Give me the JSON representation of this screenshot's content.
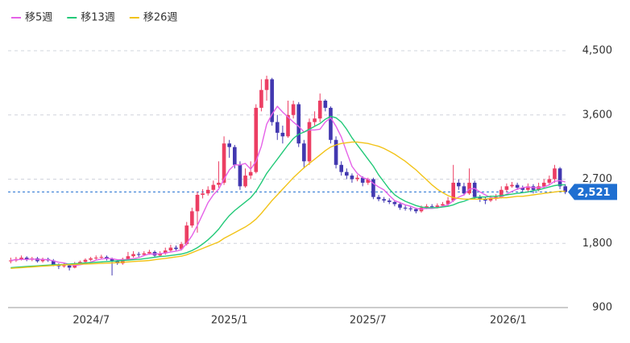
{
  "chart_data": {
    "type": "candlestick",
    "up_color": "#ec3e63",
    "down_color": "#4238b0",
    "open": [
      1550,
      1560,
      1580,
      1600,
      1570,
      1590,
      1550,
      1580,
      1560,
      1500,
      1480,
      1490,
      1460,
      1520,
      1540,
      1570,
      1590,
      1600,
      1610,
      1580,
      1550,
      1520,
      1580,
      1620,
      1650,
      1640,
      1660,
      1680,
      1630,
      1660,
      1700,
      1740,
      1720,
      1790,
      2050,
      2250,
      2480,
      2500,
      2550,
      2620,
      2650,
      3200,
      3150,
      2900,
      2600,
      2750,
      2800,
      3700,
      3950,
      4100,
      3500,
      3350,
      3300,
      3600,
      3750,
      3200,
      2950,
      3500,
      3550,
      3800,
      3700,
      3250,
      2900,
      2800,
      2750,
      2700,
      2720,
      2650,
      2700,
      2450,
      2420,
      2400,
      2380,
      2350,
      2300,
      2290,
      2280,
      2250,
      2300,
      2320,
      2310,
      2330,
      2350,
      2400,
      2650,
      2600,
      2500,
      2650,
      2450,
      2420,
      2400,
      2430,
      2450,
      2550,
      2600,
      2620,
      2580,
      2550,
      2600,
      2550,
      2600,
      2650,
      2700,
      2850,
      2600
    ],
    "high": [
      1600,
      1610,
      1630,
      1620,
      1610,
      1610,
      1600,
      1600,
      1580,
      1520,
      1520,
      1510,
      1540,
      1560,
      1590,
      1610,
      1630,
      1640,
      1630,
      1600,
      1570,
      1600,
      1680,
      1690,
      1680,
      1690,
      1710,
      1700,
      1690,
      1740,
      1780,
      1770,
      1820,
      2100,
      2300,
      2520,
      2560,
      2600,
      2680,
      2950,
      3300,
      3250,
      3180,
      2950,
      2850,
      2950,
      3750,
      4100,
      4150,
      4120,
      3600,
      3450,
      3800,
      3800,
      3780,
      3250,
      3550,
      3650,
      3900,
      3820,
      3720,
      3300,
      2950,
      2850,
      2780,
      2760,
      2740,
      2720,
      2720,
      2480,
      2450,
      2430,
      2400,
      2380,
      2330,
      2320,
      2300,
      2330,
      2350,
      2350,
      2360,
      2380,
      2450,
      2900,
      2700,
      2650,
      2850,
      2680,
      2480,
      2450,
      2470,
      2490,
      2600,
      2640,
      2660,
      2650,
      2610,
      2640,
      2630,
      2650,
      2700,
      2750,
      2900,
      2870,
      2630
    ],
    "low": [
      1520,
      1540,
      1560,
      1550,
      1550,
      1530,
      1530,
      1540,
      1480,
      1440,
      1460,
      1420,
      1450,
      1500,
      1520,
      1550,
      1570,
      1580,
      1560,
      1350,
      1500,
      1500,
      1560,
      1600,
      1610,
      1620,
      1640,
      1610,
      1610,
      1640,
      1680,
      1700,
      1700,
      1770,
      2020,
      1950,
      2430,
      2470,
      2520,
      2580,
      2620,
      3000,
      2850,
      2550,
      2580,
      2700,
      2780,
      3650,
      3800,
      3450,
      3250,
      3200,
      3280,
      3550,
      3150,
      2850,
      2900,
      3450,
      3500,
      3650,
      3200,
      2850,
      2750,
      2700,
      2650,
      2670,
      2600,
      2620,
      2420,
      2390,
      2370,
      2350,
      2320,
      2270,
      2260,
      2250,
      2220,
      2230,
      2280,
      2290,
      2290,
      2310,
      2320,
      2380,
      2550,
      2470,
      2480,
      2420,
      2380,
      2350,
      2380,
      2400,
      2430,
      2520,
      2580,
      2550,
      2520,
      2520,
      2500,
      2530,
      2570,
      2620,
      2650,
      2560,
      2490
    ],
    "close": [
      1560,
      1580,
      1600,
      1570,
      1590,
      1550,
      1580,
      1560,
      1500,
      1480,
      1490,
      1460,
      1520,
      1540,
      1570,
      1590,
      1600,
      1610,
      1580,
      1550,
      1520,
      1580,
      1620,
      1650,
      1640,
      1660,
      1680,
      1630,
      1660,
      1700,
      1740,
      1720,
      1790,
      2050,
      2250,
      2480,
      2500,
      2550,
      2620,
      2650,
      3200,
      3150,
      2900,
      2600,
      2750,
      2800,
      3700,
      3950,
      4100,
      3500,
      3350,
      3300,
      3600,
      3750,
      3200,
      2950,
      3500,
      3550,
      3800,
      3700,
      3250,
      2900,
      2800,
      2750,
      2700,
      2720,
      2650,
      2700,
      2450,
      2420,
      2400,
      2380,
      2350,
      2300,
      2290,
      2280,
      2250,
      2300,
      2320,
      2310,
      2330,
      2350,
      2400,
      2650,
      2600,
      2500,
      2650,
      2450,
      2420,
      2400,
      2430,
      2450,
      2550,
      2600,
      2620,
      2580,
      2550,
      2600,
      2550,
      2600,
      2650,
      2700,
      2850,
      2600,
      2521
    ],
    "series": [
      {
        "name": "移5週",
        "color": "#e562e8",
        "values": [
          1560,
          1570,
          1575,
          1575,
          1580,
          1575,
          1575,
          1570,
          1555,
          1535,
          1525,
          1505,
          1490,
          1500,
          1515,
          1535,
          1565,
          1580,
          1590,
          1585,
          1570,
          1570,
          1575,
          1585,
          1600,
          1630,
          1650,
          1650,
          1655,
          1665,
          1680,
          1690,
          1710,
          1800,
          1910,
          2050,
          2210,
          2370,
          2480,
          2560,
          2700,
          2830,
          2900,
          2900,
          2920,
          2840,
          2950,
          3160,
          3470,
          3610,
          3720,
          3640,
          3570,
          3500,
          3440,
          3360,
          3390,
          3390,
          3400,
          3500,
          3560,
          3440,
          3290,
          3080,
          2880,
          2780,
          2720,
          2700,
          2640,
          2590,
          2550,
          2470,
          2400,
          2370,
          2340,
          2320,
          2290,
          2280,
          2290,
          2290,
          2300,
          2320,
          2340,
          2400,
          2450,
          2480,
          2560,
          2570,
          2520,
          2480,
          2440,
          2430,
          2450,
          2490,
          2530,
          2560,
          2580,
          2590,
          2580,
          2580,
          2590,
          2620,
          2670,
          2680,
          2660
        ]
      },
      {
        "name": "移13週",
        "color": "#22c978",
        "values": [
          1460,
          1465,
          1470,
          1475,
          1480,
          1485,
          1490,
          1495,
          1500,
          1500,
          1505,
          1510,
          1515,
          1520,
          1525,
          1530,
          1535,
          1540,
          1545,
          1550,
          1555,
          1560,
          1565,
          1570,
          1575,
          1585,
          1595,
          1605,
          1615,
          1620,
          1630,
          1640,
          1650,
          1670,
          1700,
          1740,
          1790,
          1850,
          1920,
          2000,
          2100,
          2190,
          2260,
          2320,
          2380,
          2440,
          2530,
          2650,
          2780,
          2880,
          2980,
          3080,
          3180,
          3270,
          3330,
          3360,
          3400,
          3440,
          3480,
          3540,
          3580,
          3560,
          3500,
          3400,
          3280,
          3180,
          3080,
          2980,
          2880,
          2760,
          2660,
          2560,
          2480,
          2430,
          2390,
          2360,
          2330,
          2310,
          2300,
          2300,
          2300,
          2310,
          2320,
          2340,
          2370,
          2390,
          2420,
          2440,
          2450,
          2450,
          2460,
          2460,
          2470,
          2480,
          2490,
          2500,
          2510,
          2520,
          2540,
          2550,
          2570,
          2590,
          2610,
          2620,
          2620
        ]
      },
      {
        "name": "移26週",
        "color": "#f2c318",
        "values": [
          1450,
          1455,
          1460,
          1465,
          1470,
          1475,
          1480,
          1485,
          1490,
          1495,
          1500,
          1502,
          1505,
          1508,
          1510,
          1513,
          1516,
          1520,
          1523,
          1526,
          1530,
          1535,
          1540,
          1545,
          1550,
          1555,
          1560,
          1570,
          1580,
          1590,
          1600,
          1610,
          1620,
          1640,
          1670,
          1700,
          1730,
          1760,
          1790,
          1820,
          1870,
          1910,
          1950,
          1990,
          2030,
          2080,
          2140,
          2220,
          2310,
          2400,
          2480,
          2560,
          2640,
          2720,
          2790,
          2860,
          2920,
          2980,
          3040,
          3100,
          3150,
          3180,
          3200,
          3210,
          3220,
          3220,
          3210,
          3200,
          3180,
          3160,
          3130,
          3090,
          3050,
          3000,
          2950,
          2890,
          2830,
          2760,
          2690,
          2620,
          2560,
          2510,
          2470,
          2440,
          2430,
          2420,
          2420,
          2420,
          2420,
          2420,
          2430,
          2430,
          2440,
          2440,
          2450,
          2460,
          2460,
          2470,
          2480,
          2490,
          2500,
          2510,
          2520,
          2530,
          2530
        ]
      }
    ],
    "legend": "top-left",
    "xlim": [
      0,
      105
    ],
    "xticks": [
      {
        "value": 15.6,
        "label": "2024/7"
      },
      {
        "value": 41.5,
        "label": "2025/1"
      },
      {
        "value": 67.5,
        "label": "2025/7"
      },
      {
        "value": 93.8,
        "label": "2026/1"
      }
    ],
    "ylim": [
      900,
      4500
    ],
    "yticks": [
      {
        "value": 900,
        "label": "900"
      },
      {
        "value": 1800,
        "label": "1,800"
      },
      {
        "value": 2700,
        "label": "2,700"
      },
      {
        "value": 3600,
        "label": "3,600"
      },
      {
        "value": 4500,
        "label": "4,500"
      }
    ],
    "grid": true,
    "last_price": {
      "value": 2521,
      "label": "2,521"
    },
    "last_price_color": "#1f6fd1"
  }
}
